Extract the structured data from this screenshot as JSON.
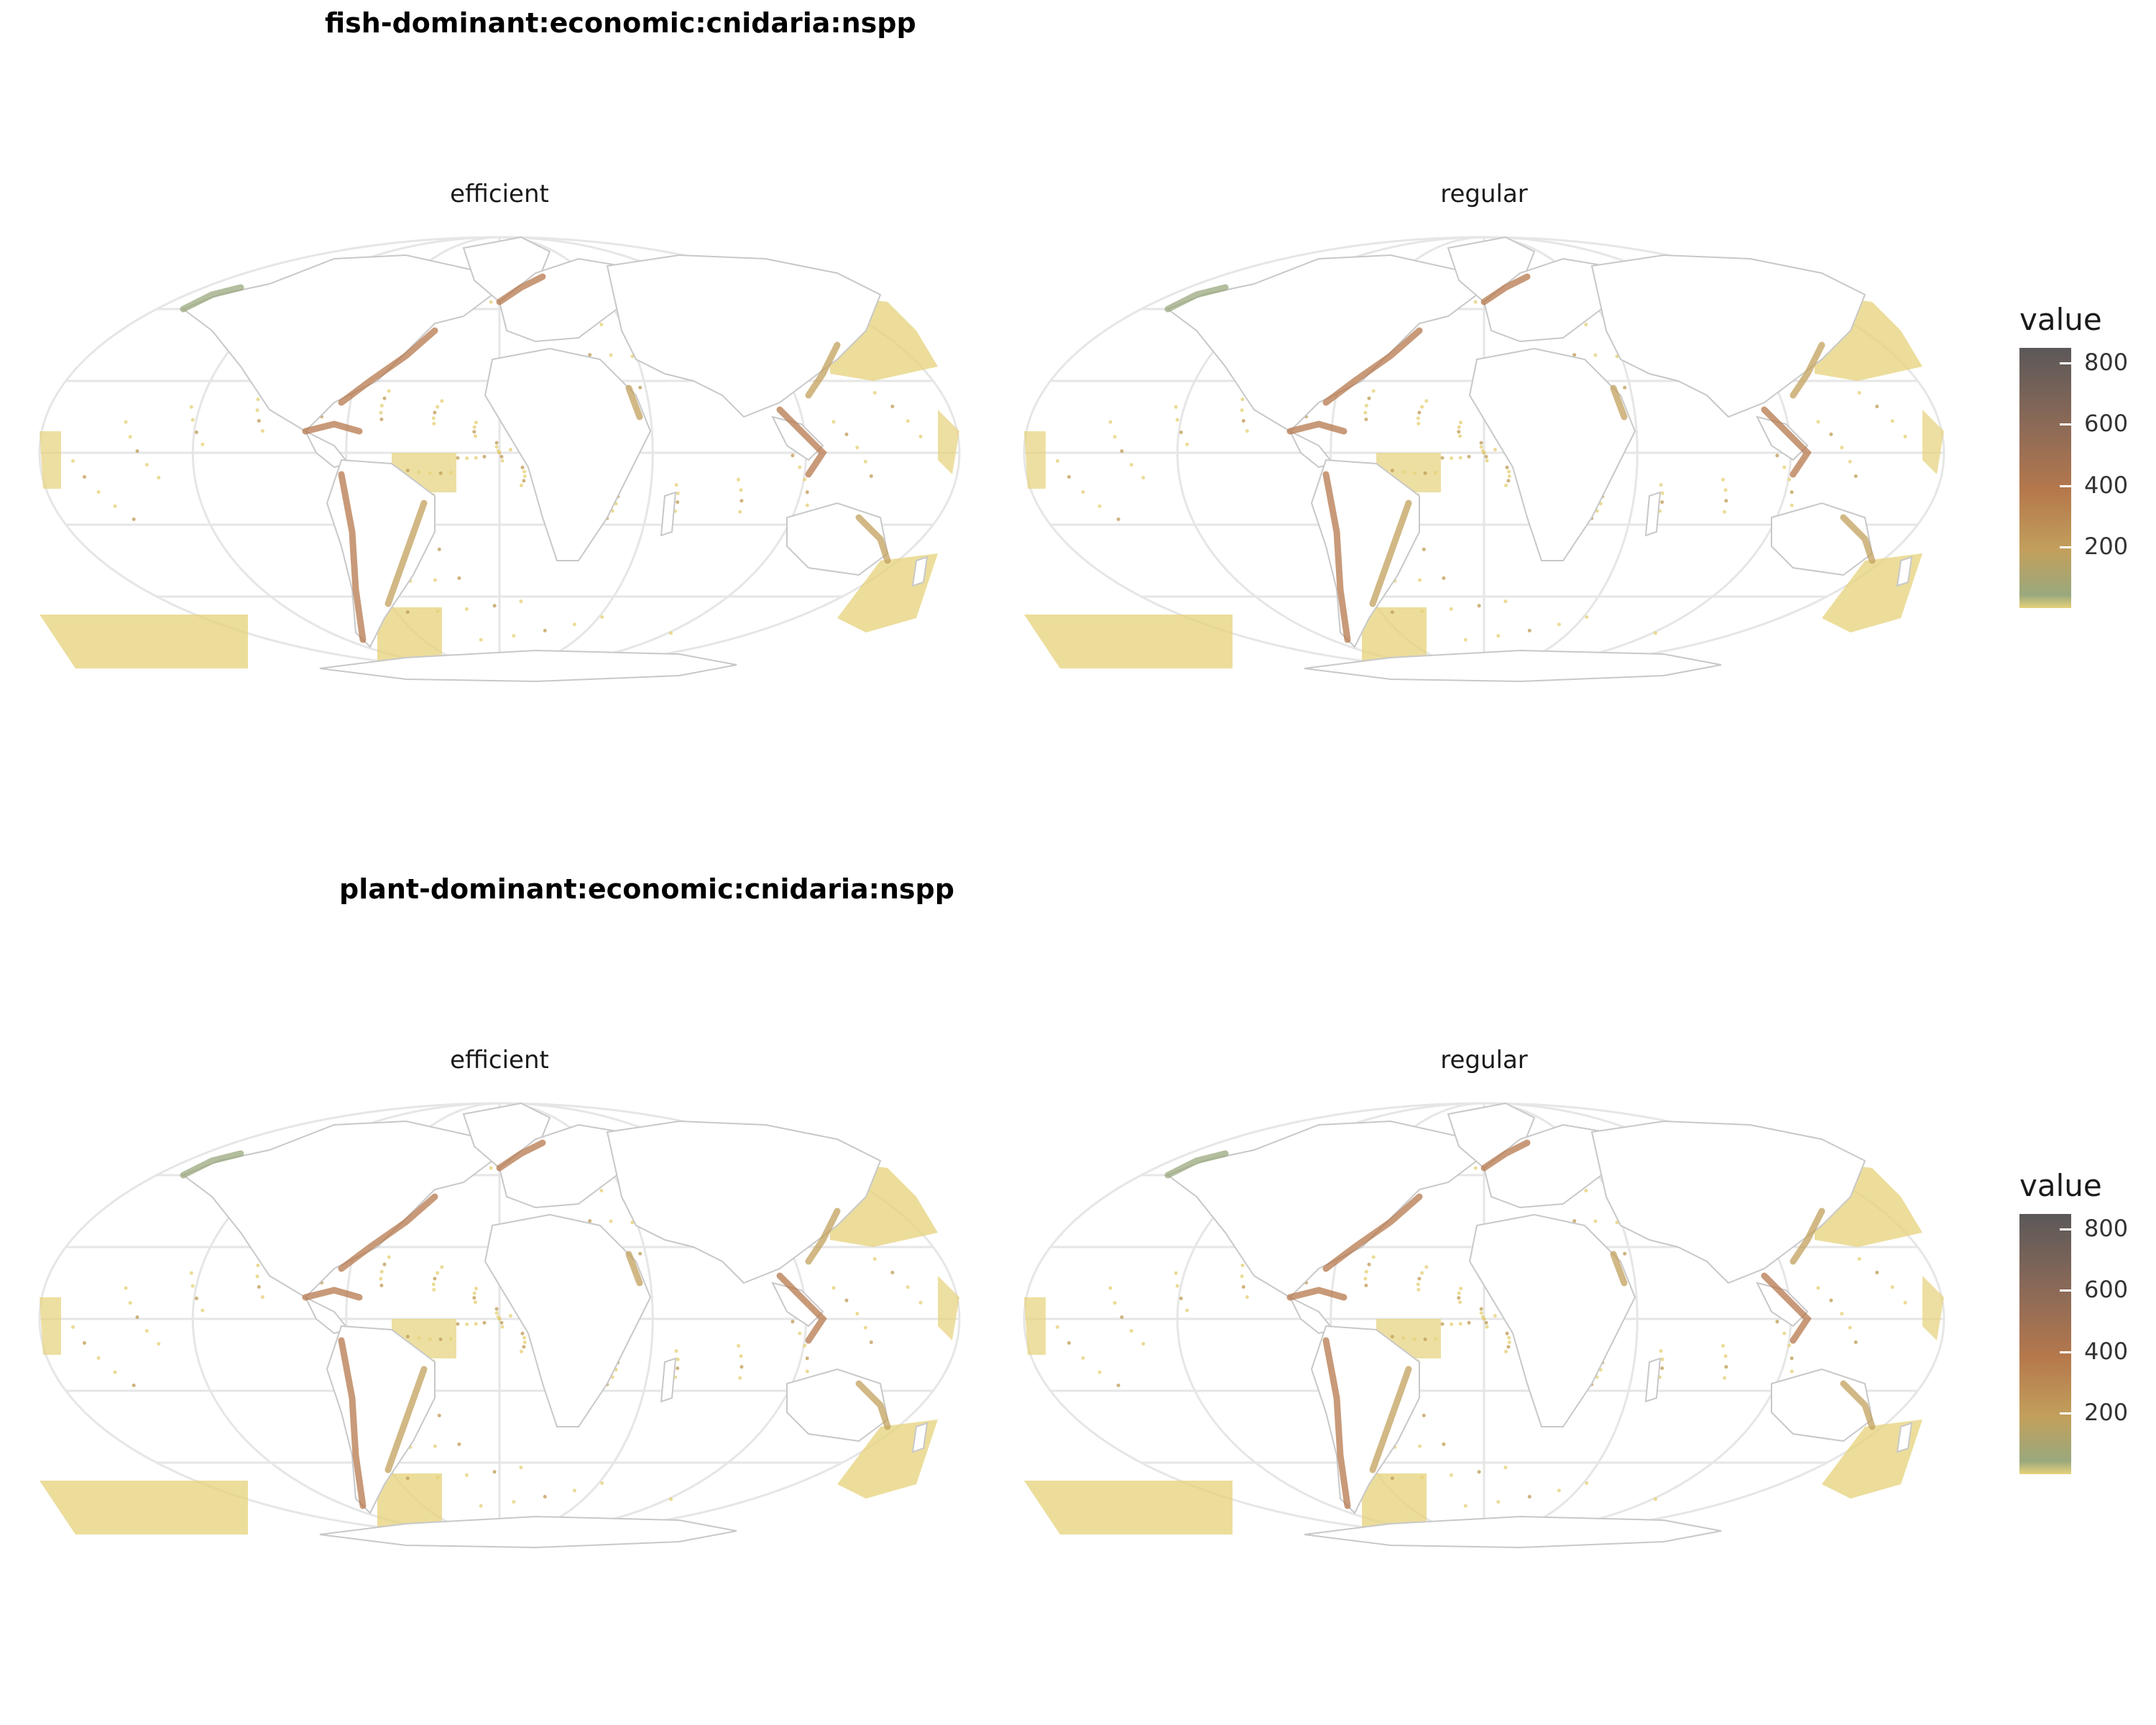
{
  "sections": [
    {
      "title": "fish-dominant:economic:cnidaria:nspp",
      "facets": [
        {
          "label": "efficient"
        },
        {
          "label": "regular"
        }
      ],
      "legend": {
        "title": "value",
        "ticks": [
          "200",
          "400",
          "600",
          "800"
        ],
        "range": [
          0,
          850
        ]
      }
    },
    {
      "title": "plant-dominant:economic:cnidaria:nspp",
      "facets": [
        {
          "label": "efficient"
        },
        {
          "label": "regular"
        }
      ],
      "legend": {
        "title": "value",
        "ticks": [
          "200",
          "400",
          "600",
          "800"
        ],
        "range": [
          0,
          850
        ]
      }
    }
  ],
  "colors": {
    "low": "#e6d27a",
    "mid_low": "#9aa87d",
    "mid": "#c2a05c",
    "mid_high": "#b5784c",
    "high": "#5b5859",
    "coast": "#c8c8c8",
    "graticule": "#e6e6e6"
  }
}
